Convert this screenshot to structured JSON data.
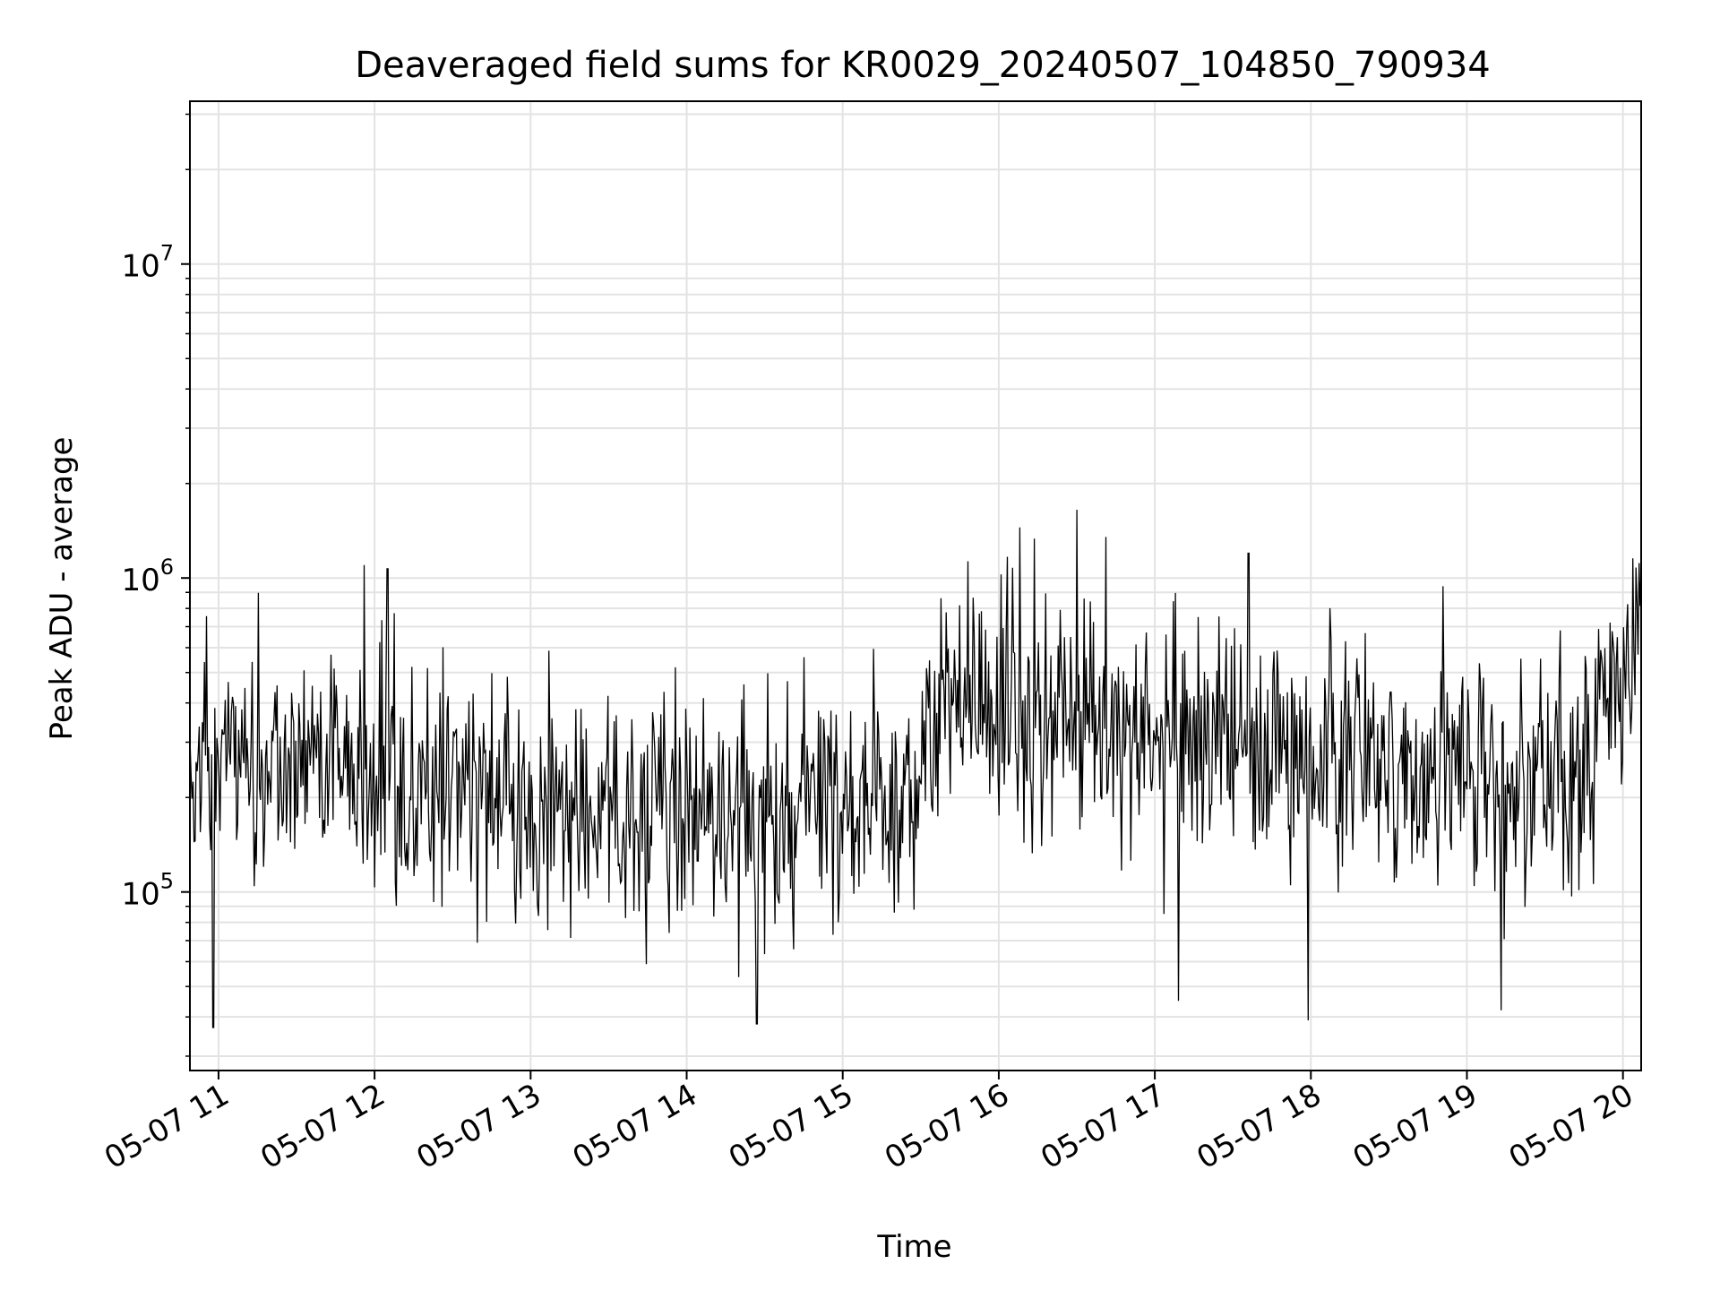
{
  "chart_data": {
    "type": "line",
    "title": "Deaveraged field sums for KR0029_20240507_104850_790934",
    "xlabel": "Time",
    "ylabel": "Peak ADU - average",
    "yscale": "log",
    "xlim": [
      "2024-05-07 10:49",
      "2024-05-07 20:07"
    ],
    "ylim": [
      27000,
      33000000
    ],
    "grid": true,
    "line_color": "#000000",
    "grid_color": "#e3e3e3",
    "xticks": [
      "05-07 11",
      "05-07 12",
      "05-07 13",
      "05-07 14",
      "05-07 15",
      "05-07 16",
      "05-07 17",
      "05-07 18",
      "05-07 19",
      "05-07 20"
    ],
    "yticks": [
      {
        "value": 100000,
        "base": "10",
        "exp": "5"
      },
      {
        "value": 1000000,
        "base": "10",
        "exp": "6"
      },
      {
        "value": 10000000,
        "base": "10",
        "exp": "7"
      }
    ],
    "series": [
      {
        "x_start": "2024-05-07 10:49",
        "x_end": "2024-05-07 20:07",
        "profile": [
          [
            "2024-05-07 10:49",
            300000
          ],
          [
            "2024-05-07 11:30",
            250000
          ],
          [
            "2024-05-07 12:00",
            230000
          ],
          [
            "2024-05-07 12:30",
            210000
          ],
          [
            "2024-05-07 13:00",
            200000
          ],
          [
            "2024-05-07 13:30",
            185000
          ],
          [
            "2024-05-07 14:00",
            180000
          ],
          [
            "2024-05-07 14:30",
            190000
          ],
          [
            "2024-05-07 15:00",
            195000
          ],
          [
            "2024-05-07 15:29",
            200000
          ],
          [
            "2024-05-07 15:31",
            370000
          ],
          [
            "2024-05-07 16:00",
            380000
          ],
          [
            "2024-05-07 16:30",
            330000
          ],
          [
            "2024-05-07 17:00",
            300000
          ],
          [
            "2024-05-07 17:30",
            280000
          ],
          [
            "2024-05-07 18:00",
            270000
          ],
          [
            "2024-05-07 18:30",
            250000
          ],
          [
            "2024-05-07 19:00",
            240000
          ],
          [
            "2024-05-07 19:30",
            235000
          ],
          [
            "2024-05-07 19:50",
            250000
          ],
          [
            "2024-05-07 19:52",
            500000
          ],
          [
            "2024-05-07 20:07",
            520000
          ]
        ],
        "n_points": 1400,
        "peaks": [
          [
            "2024-05-07 11:56",
            1100000
          ],
          [
            "2024-05-07 12:05",
            1070000
          ],
          [
            "2024-05-07 16:08",
            1450000
          ],
          [
            "2024-05-07 16:30",
            1650000
          ],
          [
            "2024-05-07 17:36",
            1200000
          ],
          [
            "2024-05-07 20:05",
            1080000
          ],
          [
            "2024-05-07 10:58",
            37000
          ],
          [
            "2024-05-07 14:27",
            38000
          ],
          [
            "2024-05-07 17:59",
            39000
          ],
          [
            "2024-05-07 19:13",
            42000
          ],
          [
            "2024-05-07 17:09",
            45000
          ]
        ]
      }
    ]
  }
}
